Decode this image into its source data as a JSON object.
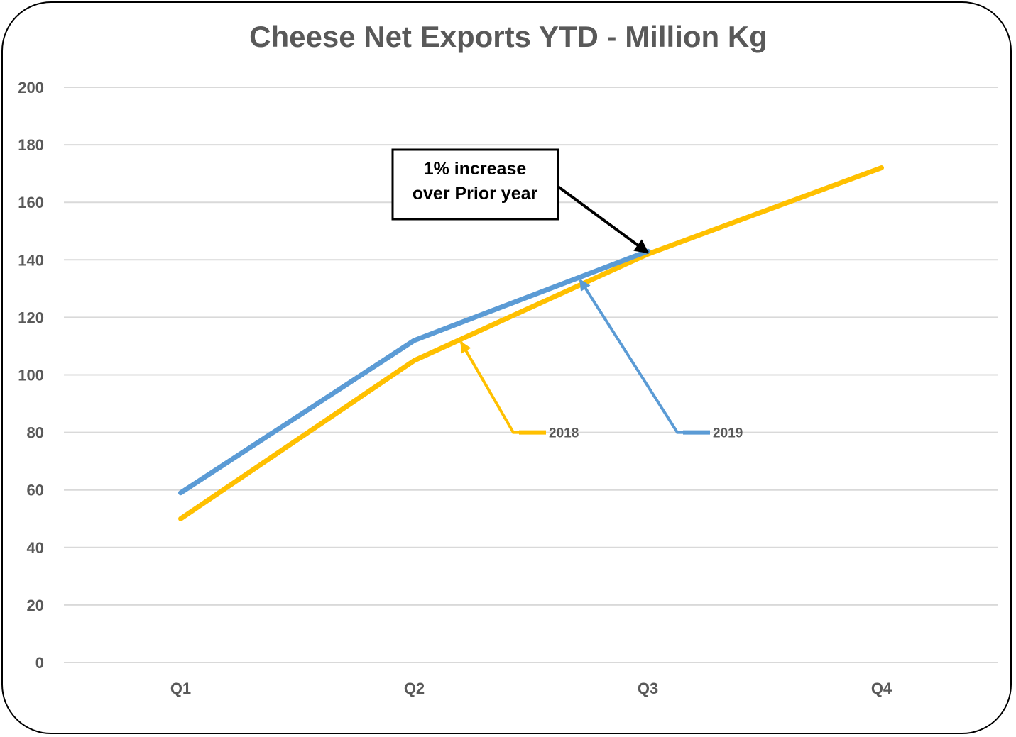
{
  "chart_data": {
    "type": "line",
    "title": "Cheese Net Exports YTD - Million Kg",
    "categories": [
      "Q1",
      "Q2",
      "Q3",
      "Q4"
    ],
    "ylim": [
      0,
      200
    ],
    "yticks": [
      0,
      20,
      40,
      60,
      80,
      100,
      120,
      140,
      160,
      180,
      200
    ],
    "grid": true,
    "series": [
      {
        "name": "2018",
        "color": "#FFC000",
        "values": [
          50,
          105,
          142,
          172
        ]
      },
      {
        "name": "2019",
        "color": "#5B9BD5",
        "values": [
          59,
          112,
          143,
          null
        ]
      }
    ],
    "annotation": {
      "lines": [
        "1% increase",
        "over Prior year"
      ],
      "target_category": "Q3",
      "target_value": 143
    }
  }
}
